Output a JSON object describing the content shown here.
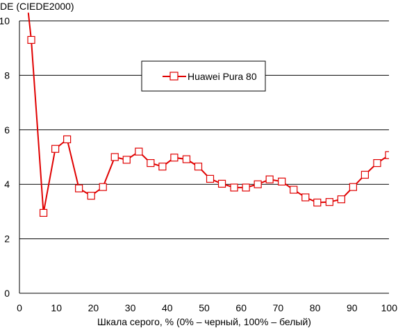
{
  "chart_data": {
    "type": "line",
    "title": "",
    "ylabel": "DE (CIEDE2000)",
    "xlabel": "Шкала серого, % (0% – черный, 100% – белый)",
    "xlim": [
      0,
      100
    ],
    "ylim": [
      0,
      10
    ],
    "x_ticks": [
      "0",
      "10",
      "20",
      "30",
      "40",
      "50",
      "60",
      "70",
      "80",
      "90",
      "100"
    ],
    "y_ticks": [
      "0",
      "2",
      "4",
      "6",
      "8",
      "10"
    ],
    "grid": {
      "horizontal": true,
      "vertical": false
    },
    "legend": {
      "placement": "top-center"
    },
    "series_color": "#e00000",
    "series": [
      {
        "name": "Huawei Pura 80",
        "x": [
          2.4,
          3.2,
          6.5,
          9.7,
          12.9,
          16.1,
          19.4,
          22.6,
          25.8,
          29.0,
          32.3,
          35.5,
          38.7,
          41.9,
          45.2,
          48.4,
          51.6,
          54.8,
          58.1,
          61.3,
          64.5,
          67.7,
          71.0,
          74.2,
          77.4,
          80.6,
          83.9,
          87.1,
          90.3,
          93.5,
          96.8,
          100.0
        ],
        "values": [
          10.3,
          9.3,
          2.95,
          5.3,
          5.65,
          3.85,
          3.58,
          3.9,
          5.0,
          4.9,
          5.2,
          4.78,
          4.65,
          4.98,
          4.92,
          4.65,
          4.2,
          4.02,
          3.88,
          3.88,
          4.0,
          4.18,
          4.1,
          3.8,
          3.52,
          3.33,
          3.35,
          3.45,
          3.9,
          4.35,
          4.78,
          5.07
        ]
      }
    ]
  }
}
